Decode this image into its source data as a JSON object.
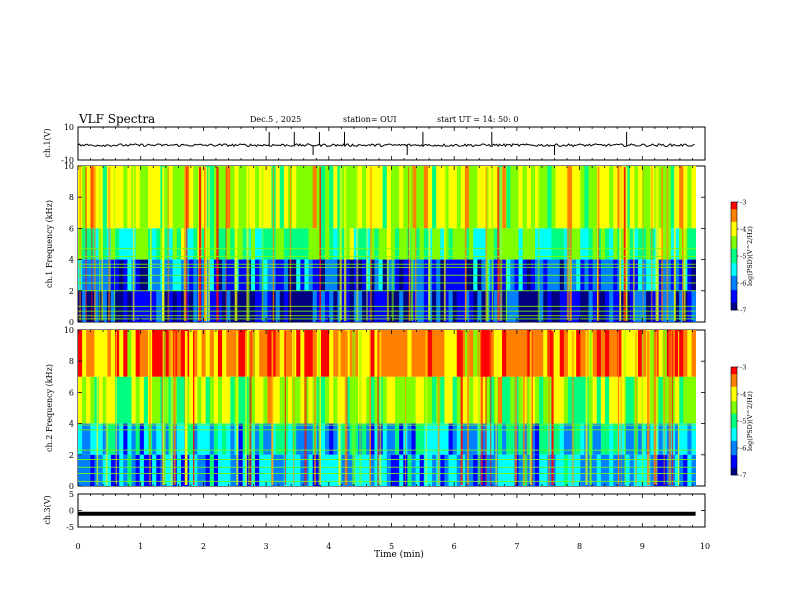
{
  "header": {
    "title": "VLF Spectra",
    "date": "Dec.5 , 2025",
    "station": "station= OUI",
    "start": "start UT = 14: 50: 0"
  },
  "chart_data": [
    {
      "type": "line",
      "ylabel": "ch.1(V)",
      "ylim": [
        -10,
        10
      ],
      "y_ticks": [
        "10",
        "-10"
      ],
      "series": [
        {
          "baseline": -1.0,
          "noise_amplitude": 0.8,
          "impulses_min": [
            3.05,
            3.45,
            3.75,
            3.85,
            4.25,
            5.25,
            5.5,
            6.6,
            7.6,
            8.75
          ]
        }
      ]
    },
    {
      "type": "heatmap",
      "ylabel": "ch.1 Frequency (kHz)",
      "ylim": [
        0,
        10
      ],
      "y_ticks": [
        "0",
        "2",
        "4",
        "6",
        "8",
        "10"
      ],
      "colorbar": {
        "label": "log(PSD)(V^2/Hz)",
        "range": [
          -7,
          -3
        ],
        "ticks": [
          "-3",
          "-4",
          "-5",
          "-6",
          "-7"
        ]
      },
      "bands_khz": [
        {
          "from": 6,
          "to": 10,
          "level": -4.3
        },
        {
          "from": 4,
          "to": 6,
          "level": -4.9
        },
        {
          "from": 2,
          "to": 4,
          "level": -6.2
        },
        {
          "from": 0,
          "to": 2,
          "level": -6.6
        }
      ],
      "tones_khz": [
        0.2,
        0.4,
        0.7,
        1.0,
        2.0,
        2.5,
        3.0,
        3.5,
        3.7,
        4.2,
        4.7
      ]
    },
    {
      "type": "heatmap",
      "ylabel": "ch.2 Frequency (kHz)",
      "ylim": [
        0,
        10
      ],
      "y_ticks": [
        "0",
        "2",
        "4",
        "6",
        "8",
        "10"
      ],
      "colorbar": {
        "label": "log(PSD)(V^2/Hz)",
        "range": [
          -7,
          -3
        ],
        "ticks": [
          "-3",
          "-4",
          "-5",
          "-6",
          "-7"
        ]
      },
      "bands_khz": [
        {
          "from": 7,
          "to": 10,
          "level": -3.6
        },
        {
          "from": 4,
          "to": 7,
          "level": -4.4
        },
        {
          "from": 2,
          "to": 4,
          "level": -5.6
        },
        {
          "from": 0,
          "to": 2,
          "level": -5.9
        }
      ],
      "tones_khz": [
        0.3,
        0.8,
        1.2,
        1.7,
        2.3,
        3.6,
        3.9
      ]
    },
    {
      "type": "line",
      "ylabel": "ch.3(V)",
      "ylim": [
        -5,
        5
      ],
      "y_ticks": [
        "5",
        "0",
        "-5"
      ],
      "series": [
        {
          "value": -1.0
        }
      ]
    }
  ],
  "x_axis": {
    "label": "Time (min)",
    "range": [
      0,
      10
    ],
    "data_end": 9.85,
    "ticks": [
      "0",
      "1",
      "2",
      "3",
      "4",
      "5",
      "6",
      "7",
      "8",
      "9",
      "10"
    ]
  },
  "colors": {
    "scale": [
      "#000080",
      "#0000ff",
      "#0080ff",
      "#00ffff",
      "#00ff80",
      "#80ff00",
      "#ffff00",
      "#ff8000",
      "#ff0000",
      "#ffffff"
    ]
  }
}
